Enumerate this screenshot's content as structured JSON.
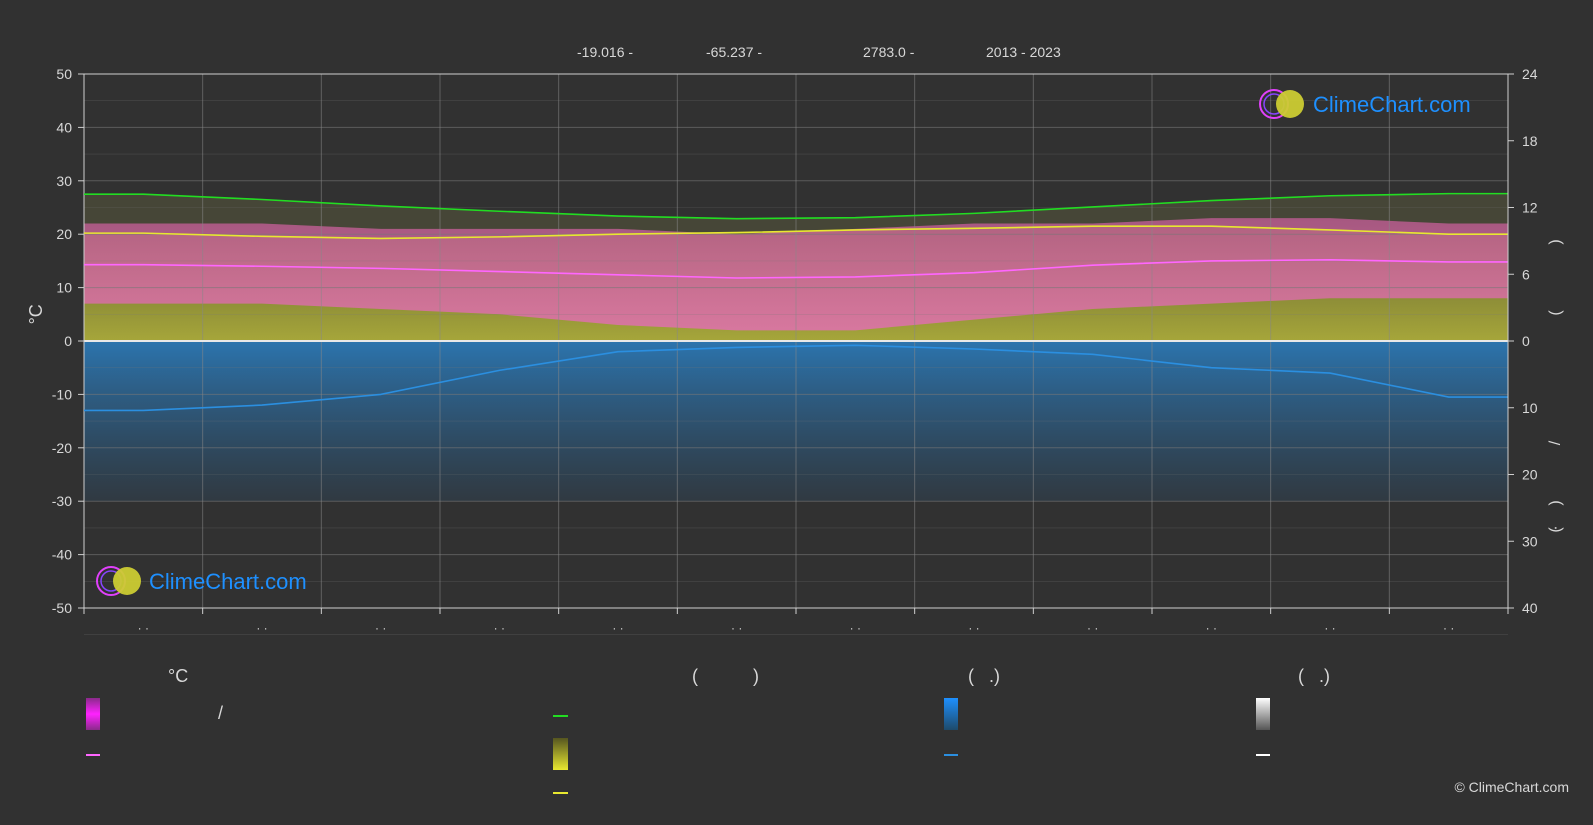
{
  "header": {
    "latitude": "-19.016 -",
    "longitude": "-65.237 -",
    "elevation": "2783.0 -",
    "period": "2013 - 2023"
  },
  "watermark": {
    "text": "ClimeChart.com"
  },
  "copyright": "© ClimeChart.com",
  "legend": {
    "col1": {
      "header": "°C",
      "range_label": "/"
    },
    "col2": {
      "header": "(           )"
    },
    "col3": {
      "header": "(   .)"
    },
    "col4": {
      "header": "(   .)"
    }
  },
  "colors": {
    "background": "#313131",
    "grid": "#6a6a6a",
    "daylight": "#22dd22",
    "sunshine": "#e8e830",
    "temp_mean": "#ff66ff",
    "temp_band": "#e060b0",
    "sunshine_fill": "#a6a63a",
    "precip": "#2a8bd8",
    "precip_line": "#2b8fe0",
    "snow": "#ffffff",
    "logo_blue": "#1e90ff",
    "logo_magenta": "#e040fb",
    "logo_yellow": "#cccc33"
  },
  "chart_data": {
    "type": "line",
    "x_count": 12,
    "y_left": {
      "label": "°C",
      "min": -50,
      "max": 50,
      "ticks": [
        50,
        40,
        30,
        20,
        10,
        0,
        -10,
        -20,
        -30,
        -40,
        -50
      ]
    },
    "y_right_top": {
      "min": 0,
      "max": 24,
      "ticks": [
        24,
        18,
        12,
        6,
        0
      ],
      "label_chars": [
        ")",
        "("
      ]
    },
    "y_right_bottom": {
      "min": 0,
      "max": 40,
      "ticks": [
        10,
        20,
        30,
        40
      ],
      "label_chars": [
        "/",
        ")",
        "·",
        "("
      ]
    },
    "x_tick_labels": [
      "· ·",
      "· ·",
      "· ·",
      "· ·",
      "· ·",
      "· ·",
      "· ·",
      "· ·",
      "· ·",
      "· ·",
      "· ·",
      "· ·"
    ],
    "series": [
      {
        "key": "daylight",
        "values": [
          27.5,
          26.5,
          25.3,
          24.3,
          23.4,
          22.9,
          23.1,
          23.9,
          25.1,
          26.3,
          27.2,
          27.6
        ]
      },
      {
        "key": "sunshine",
        "values": [
          20.2,
          19.6,
          19.2,
          19.5,
          20.0,
          20.3,
          20.8,
          21.1,
          21.5,
          21.5,
          20.8,
          20.0
        ]
      },
      {
        "key": "temp_mean",
        "values": [
          14.3,
          14.0,
          13.6,
          13.0,
          12.4,
          11.8,
          12.0,
          12.8,
          14.2,
          15.0,
          15.2,
          14.8
        ]
      },
      {
        "key": "precip",
        "values": [
          -13.0,
          -12.0,
          -10.0,
          -5.5,
          -2.0,
          -1.2,
          -0.8,
          -1.5,
          -2.5,
          -5.0,
          -6.0,
          -10.5
        ]
      }
    ],
    "temp_band": {
      "min": [
        7,
        7,
        6,
        5,
        3,
        2,
        2,
        4,
        6,
        7,
        8,
        8
      ],
      "max": [
        22,
        22,
        21,
        21,
        21,
        20,
        21,
        22,
        22,
        23,
        23,
        22
      ]
    }
  }
}
